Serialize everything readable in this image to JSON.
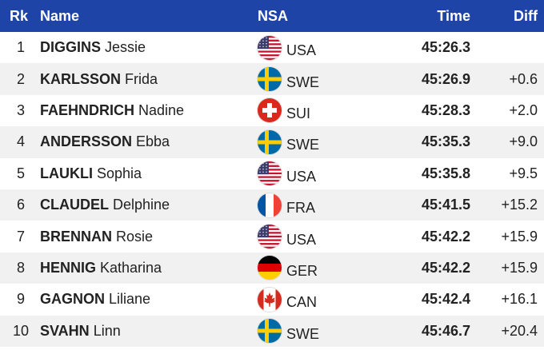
{
  "table": {
    "header": {
      "rank": "Rk",
      "name": "Name",
      "nsa": "NSA",
      "time": "Time",
      "diff": "Diff"
    },
    "rows": [
      {
        "rank": "1",
        "surname": "DIGGINS",
        "given": "Jessie",
        "nsa": "USA",
        "time": "45:26.3"
      },
      {
        "rank": "2",
        "surname": "KARLSSON",
        "given": "Frida",
        "nsa": "SWE",
        "time": "45:26.9",
        "diff": "+0.6"
      },
      {
        "rank": "3",
        "surname": "FAEHNDRICH",
        "given": "Nadine",
        "nsa": "SUI",
        "time": "45:28.3",
        "diff": "+2.0"
      },
      {
        "rank": "4",
        "surname": "ANDERSSON",
        "given": "Ebba",
        "nsa": "SWE",
        "time": "45:35.3",
        "diff": "+9.0"
      },
      {
        "rank": "5",
        "surname": "LAUKLI",
        "given": "Sophia",
        "nsa": "USA",
        "time": "45:35.8",
        "diff": "+9.5"
      },
      {
        "rank": "6",
        "surname": "CLAUDEL",
        "given": "Delphine",
        "nsa": "FRA",
        "time": "45:41.5",
        "diff": "+15.2"
      },
      {
        "rank": "7",
        "surname": "BRENNAN",
        "given": "Rosie",
        "nsa": "USA",
        "time": "45:42.2",
        "diff": "+15.9"
      },
      {
        "rank": "8",
        "surname": "HENNIG",
        "given": "Katharina",
        "nsa": "GER",
        "time": "45:42.2",
        "diff": "+15.9"
      },
      {
        "rank": "9",
        "surname": "GAGNON",
        "given": "Liliane",
        "nsa": "CAN",
        "time": "45:42.4",
        "diff": "+16.1"
      },
      {
        "rank": "10",
        "surname": "SVAHN",
        "given": "Linn",
        "nsa": "SWE",
        "time": "45:46.7",
        "diff": "+20.4"
      }
    ],
    "flags": {
      "USA": {
        "layout": "stripes-canton",
        "colors": [
          "#c8102e",
          "#ffffff",
          "#3c3b6e"
        ]
      },
      "SWE": {
        "layout": "nordic-cross",
        "colors": [
          "#006aa7",
          "#fecc00"
        ]
      },
      "SUI": {
        "layout": "centre-cross",
        "colors": [
          "#da291c",
          "#ffffff"
        ]
      },
      "FRA": {
        "layout": "vertical-tricolor",
        "colors": [
          "#0055a4",
          "#ffffff",
          "#ef4135"
        ]
      },
      "GER": {
        "layout": "horizontal-tricolor",
        "colors": [
          "#000000",
          "#dd0000",
          "#ffce00"
        ]
      },
      "CAN": {
        "layout": "maple",
        "colors": [
          "#d52b1e",
          "#ffffff"
        ]
      }
    }
  }
}
